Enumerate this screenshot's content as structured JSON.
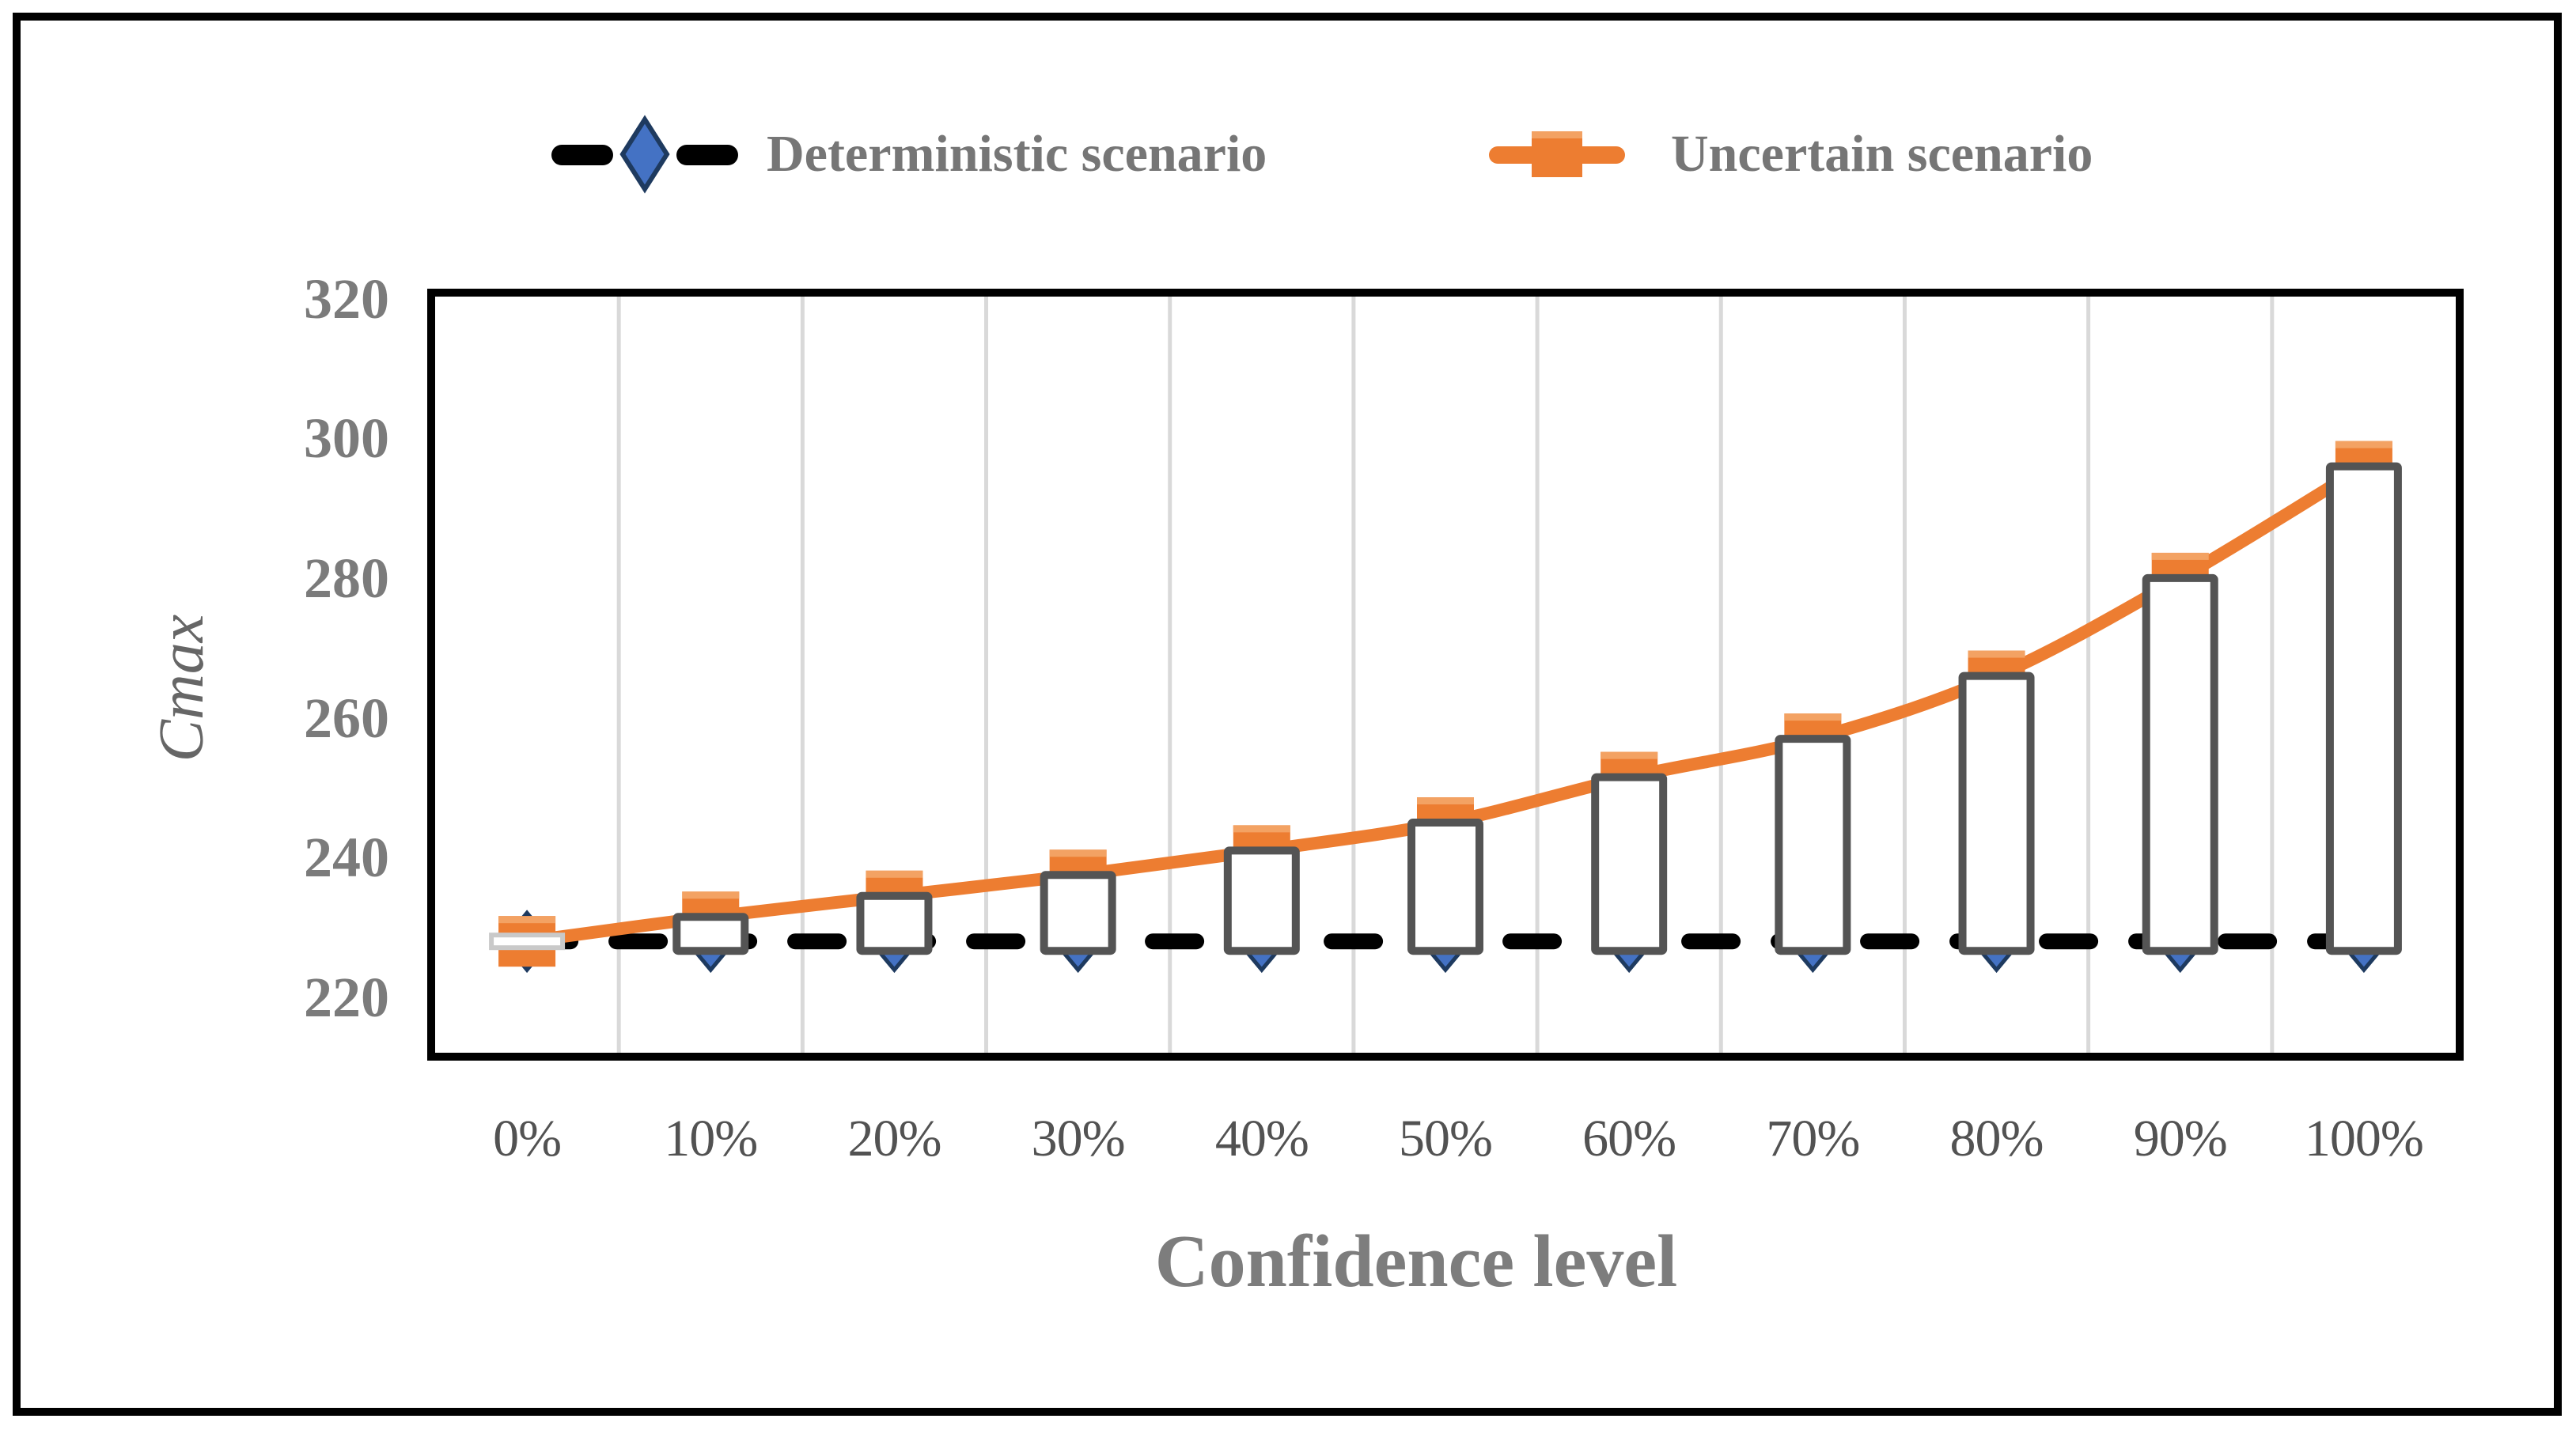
{
  "legend": {
    "items": [
      {
        "label": "Deterministic scenario",
        "marker": "dash-diamond",
        "line_color": "#000000",
        "marker_color": "#4472C4",
        "marker_stroke": "#1E3A5F"
      },
      {
        "label": "Uncertain scenario",
        "marker": "line-square",
        "line_color": "#ED7D31",
        "marker_color": "#ED7D31",
        "marker_highlight": "#F3A263"
      }
    ]
  },
  "y_axis": {
    "title": "Cmax",
    "ticks": [
      320,
      300,
      280,
      260,
      240,
      220
    ],
    "min": 210,
    "max": 320
  },
  "x_axis": {
    "title": "Confidence level",
    "labels": [
      "0%",
      "10%",
      "20%",
      "30%",
      "40%",
      "50%",
      "60%",
      "70%",
      "80%",
      "90%",
      "100%"
    ]
  },
  "chart_data": {
    "type": "line",
    "title": "",
    "xlabel": "Confidence level",
    "ylabel": "Cmax",
    "ylim": [
      210,
      320
    ],
    "y_tick_interval": 20,
    "grid": "vertical-only",
    "gridline_color": "#D9D9D9",
    "legend_position": "top",
    "categories": [
      "0%",
      "10%",
      "20%",
      "30%",
      "40%",
      "50%",
      "60%",
      "70%",
      "80%",
      "90%",
      "100%"
    ],
    "series": [
      {
        "name": "Deterministic scenario",
        "style": "dashed",
        "color": "#000000",
        "marker": "diamond",
        "marker_color": "#4472C4",
        "marker_stroke": "#1E3A5F",
        "values": [
          228,
          228,
          228,
          228,
          228,
          228,
          228,
          228,
          228,
          228,
          228
        ]
      },
      {
        "name": "Uncertain scenario",
        "style": "smooth",
        "color": "#ED7D31",
        "marker": "square",
        "marker_color": "#ED7D31",
        "values": [
          228,
          231.5,
          234.5,
          237.5,
          241,
          245,
          251.5,
          257,
          266,
          280,
          296
        ]
      }
    ],
    "high_low_bars": {
      "fill": "#ffffff",
      "border": "#545454",
      "zero_height_border": "#c9c9c9"
    }
  }
}
